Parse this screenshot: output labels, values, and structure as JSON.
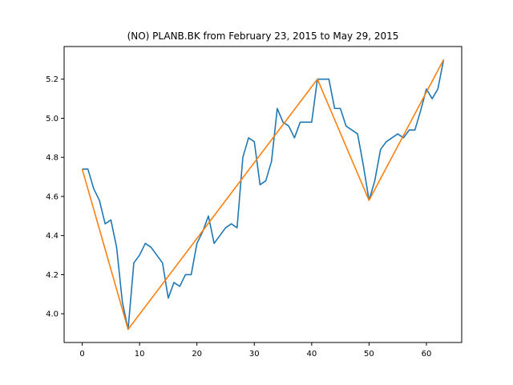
{
  "chart_data": {
    "type": "line",
    "title": "(NO) PLANB.BK from February 23, 2015 to May 29, 2015",
    "xlabel": "",
    "ylabel": "",
    "xlim": [
      -3.15,
      66.15
    ],
    "ylim": [
      3.853,
      5.367
    ],
    "xticks": [
      0,
      10,
      20,
      30,
      40,
      50,
      60
    ],
    "yticks": [
      4.0,
      4.2,
      4.4,
      4.6,
      4.8,
      5.0,
      5.2
    ],
    "grid": false,
    "legend": "none",
    "series": [
      {
        "color": "#1f77b4",
        "x": [
          0,
          1,
          2,
          3,
          4,
          5,
          6,
          7,
          8,
          9,
          10,
          11,
          12,
          13,
          14,
          15,
          16,
          17,
          18,
          19,
          20,
          21,
          22,
          23,
          24,
          25,
          26,
          27,
          28,
          29,
          30,
          31,
          32,
          33,
          34,
          35,
          36,
          37,
          38,
          39,
          40,
          41,
          42,
          43,
          44,
          45,
          46,
          47,
          48,
          49,
          50,
          51,
          52,
          53,
          54,
          55,
          56,
          57,
          58,
          59,
          60,
          61,
          62,
          63
        ],
        "y": [
          4.74,
          4.74,
          4.64,
          4.58,
          4.46,
          4.48,
          4.34,
          4.06,
          3.92,
          4.26,
          4.3,
          4.36,
          4.34,
          4.3,
          4.26,
          4.08,
          4.16,
          4.14,
          4.2,
          4.2,
          4.36,
          4.42,
          4.5,
          4.36,
          4.4,
          4.44,
          4.46,
          4.44,
          4.8,
          4.9,
          4.88,
          4.66,
          4.68,
          4.78,
          5.05,
          4.98,
          4.96,
          4.9,
          4.98,
          4.98,
          4.98,
          5.2,
          5.2,
          5.2,
          5.05,
          5.05,
          4.96,
          4.94,
          4.92,
          4.76,
          4.58,
          4.68,
          4.84,
          4.88,
          4.9,
          4.92,
          4.9,
          4.94,
          4.94,
          5.04,
          5.15,
          5.1,
          5.15,
          5.3
        ]
      },
      {
        "color": "#ff7f0e",
        "x": [
          0,
          8,
          41,
          50,
          63
        ],
        "y": [
          4.74,
          3.92,
          5.2,
          4.58,
          5.3
        ]
      }
    ]
  }
}
